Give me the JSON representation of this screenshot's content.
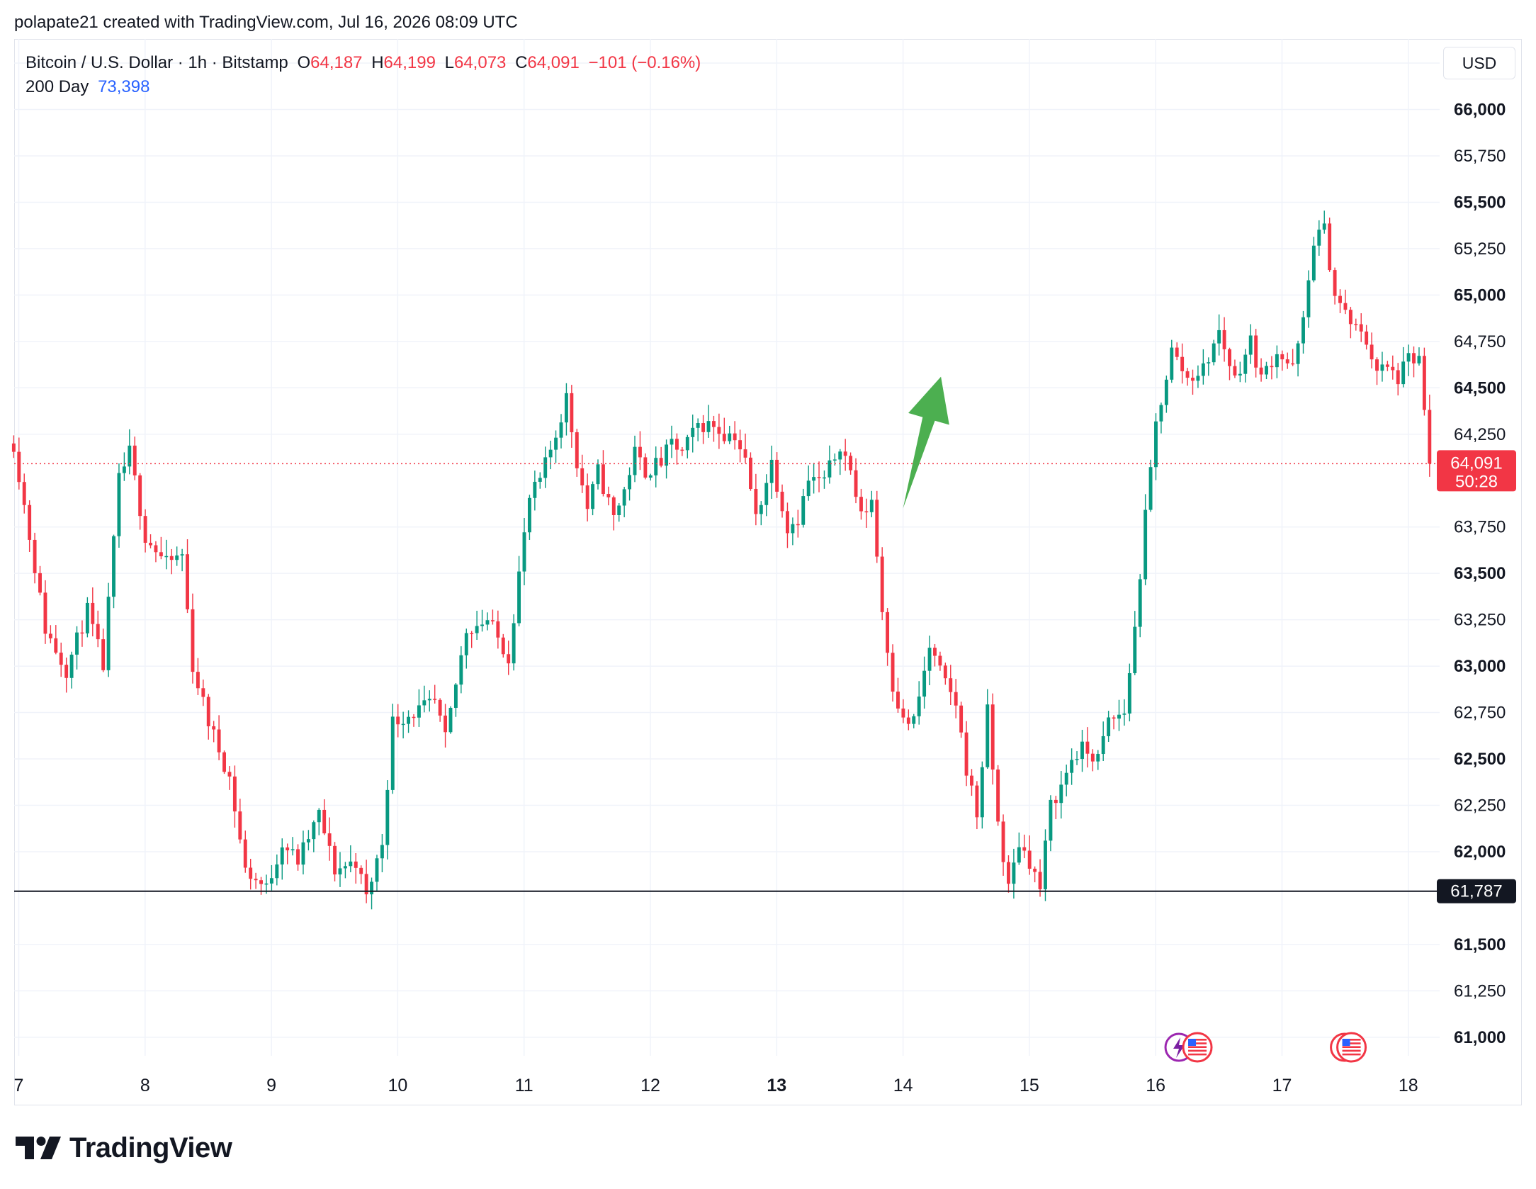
{
  "caption": "polapate21 created with TradingView.com, Jul 16, 2026 08:09 UTC",
  "legend": {
    "symbol": "Bitcoin / U.S. Dollar · 1h · Bitstamp",
    "o_label": "O",
    "o_value": "64,187",
    "h_label": "H",
    "h_value": "64,199",
    "l_label": "L",
    "l_value": "64,073",
    "c_label": "C",
    "c_value": "64,091",
    "change": "−101 (−0.16%)",
    "ma_label": "200 Day",
    "ma_value": "73,398"
  },
  "currency": "USD",
  "footer": {
    "brand": "TradingView"
  },
  "colors": {
    "up": "#089981",
    "down": "#f23645",
    "grid": "#f0f3fa",
    "ma": "#2962ff",
    "arrow": "#4caf50"
  },
  "chart_data": {
    "type": "candlestick",
    "title": "Bitcoin / U.S. Dollar · 1h · Bitstamp",
    "currency": "USD",
    "ylim": [
      60900,
      66380
    ],
    "y_ticks": [
      {
        "value": 61000,
        "label": "61,000",
        "bold": true
      },
      {
        "value": 61250,
        "label": "61,250",
        "bold": false
      },
      {
        "value": 61500,
        "label": "61,500",
        "bold": true
      },
      {
        "value": 62000,
        "label": "62,000",
        "bold": true
      },
      {
        "value": 62250,
        "label": "62,250",
        "bold": false
      },
      {
        "value": 62500,
        "label": "62,500",
        "bold": true
      },
      {
        "value": 62750,
        "label": "62,750",
        "bold": false
      },
      {
        "value": 63000,
        "label": "63,000",
        "bold": true
      },
      {
        "value": 63250,
        "label": "63,250",
        "bold": false
      },
      {
        "value": 63500,
        "label": "63,500",
        "bold": true
      },
      {
        "value": 63750,
        "label": "63,750",
        "bold": false
      },
      {
        "value": 64250,
        "label": "64,250",
        "bold": false
      },
      {
        "value": 64500,
        "label": "64,500",
        "bold": true
      },
      {
        "value": 64750,
        "label": "64,750",
        "bold": false
      },
      {
        "value": 65000,
        "label": "65,000",
        "bold": true
      },
      {
        "value": 65250,
        "label": "65,250",
        "bold": false
      },
      {
        "value": 65500,
        "label": "65,500",
        "bold": true
      },
      {
        "value": 65750,
        "label": "65,750",
        "bold": false
      },
      {
        "value": 66000,
        "label": "66,000",
        "bold": true
      },
      {
        "value": 66250,
        "label": "66,250",
        "bold": false
      }
    ],
    "x_range": [
      7.0,
      18.2
    ],
    "x_ticks": [
      {
        "value": 7,
        "label": "7",
        "bold": false
      },
      {
        "value": 8,
        "label": "8",
        "bold": false
      },
      {
        "value": 9,
        "label": "9",
        "bold": false
      },
      {
        "value": 10,
        "label": "10",
        "bold": false
      },
      {
        "value": 11,
        "label": "11",
        "bold": false
      },
      {
        "value": 12,
        "label": "12",
        "bold": false
      },
      {
        "value": 13,
        "label": "13",
        "bold": true
      },
      {
        "value": 14,
        "label": "14",
        "bold": false
      },
      {
        "value": 15,
        "label": "15",
        "bold": false
      },
      {
        "value": 16,
        "label": "16",
        "bold": false
      },
      {
        "value": 17,
        "label": "17",
        "bold": false
      },
      {
        "value": 18,
        "label": "18",
        "bold": false
      }
    ],
    "start_day": 6.96,
    "bar_hours": 1,
    "close_path": [
      [
        0,
        64200
      ],
      [
        6,
        63200
      ],
      [
        10,
        62980
      ],
      [
        14,
        63300
      ],
      [
        17,
        63000
      ],
      [
        20,
        64000
      ],
      [
        22,
        64150
      ],
      [
        25,
        63700
      ],
      [
        29,
        63550
      ],
      [
        32,
        63600
      ],
      [
        34,
        63000
      ],
      [
        37,
        62700
      ],
      [
        41,
        62400
      ],
      [
        44,
        61900
      ],
      [
        48,
        61800
      ],
      [
        51,
        62050
      ],
      [
        54,
        61950
      ],
      [
        58,
        62200
      ],
      [
        61,
        61900
      ],
      [
        65,
        61950
      ],
      [
        67,
        61750
      ],
      [
        70,
        62050
      ],
      [
        72,
        62700
      ],
      [
        76,
        62750
      ],
      [
        80,
        62800
      ],
      [
        82,
        62600
      ],
      [
        86,
        63200
      ],
      [
        90,
        63250
      ],
      [
        94,
        63050
      ],
      [
        96,
        63500
      ],
      [
        98,
        63900
      ],
      [
        100,
        64000
      ],
      [
        103,
        64250
      ],
      [
        105,
        64450
      ],
      [
        107,
        64100
      ],
      [
        109,
        63850
      ],
      [
        111,
        64050
      ],
      [
        114,
        63800
      ],
      [
        116,
        63950
      ],
      [
        118,
        64150
      ],
      [
        120,
        64050
      ],
      [
        123,
        64100
      ],
      [
        125,
        64200
      ],
      [
        127,
        64150
      ],
      [
        130,
        64300
      ],
      [
        133,
        64300
      ],
      [
        135,
        64250
      ],
      [
        137,
        64250
      ],
      [
        139,
        64100
      ],
      [
        141,
        63800
      ],
      [
        144,
        64100
      ],
      [
        147,
        63750
      ],
      [
        149,
        63800
      ],
      [
        151,
        64000
      ],
      [
        154,
        64000
      ],
      [
        157,
        64200
      ],
      [
        159,
        64050
      ],
      [
        161,
        63800
      ],
      [
        163,
        63900
      ],
      [
        165,
        63300
      ],
      [
        167,
        62900
      ],
      [
        169,
        62700
      ],
      [
        171,
        62700
      ],
      [
        174,
        63100
      ],
      [
        177,
        62900
      ],
      [
        179,
        62800
      ],
      [
        181,
        62450
      ],
      [
        183,
        62200
      ],
      [
        185,
        62750
      ],
      [
        187,
        62150
      ],
      [
        189,
        61800
      ],
      [
        191,
        62050
      ],
      [
        193,
        61950
      ],
      [
        195,
        61800
      ],
      [
        197,
        62250
      ],
      [
        199,
        62350
      ],
      [
        201,
        62500
      ],
      [
        203,
        62550
      ],
      [
        206,
        62500
      ],
      [
        208,
        62700
      ],
      [
        211,
        62750
      ],
      [
        213,
        63200
      ],
      [
        215,
        63800
      ],
      [
        217,
        64300
      ],
      [
        220,
        64700
      ],
      [
        223,
        64550
      ],
      [
        226,
        64600
      ],
      [
        229,
        64800
      ],
      [
        232,
        64550
      ],
      [
        235,
        64750
      ],
      [
        237,
        64550
      ],
      [
        240,
        64700
      ],
      [
        243,
        64600
      ],
      [
        245,
        64850
      ],
      [
        247,
        65300
      ],
      [
        249,
        65350
      ],
      [
        251,
        65000
      ],
      [
        254,
        64850
      ],
      [
        257,
        64750
      ],
      [
        259,
        64600
      ],
      [
        261,
        64600
      ],
      [
        263,
        64550
      ],
      [
        265,
        64650
      ],
      [
        267,
        64650
      ],
      [
        269,
        64100
      ]
    ],
    "seed": 11,
    "wick_volatility": 80,
    "last_price": {
      "value": 64091,
      "label": "64,091",
      "countdown": "50:28"
    },
    "horizontal_line": {
      "value": 61787,
      "label": "61,787"
    },
    "annotation": {
      "type": "arrow",
      "direction": "up",
      "from": [
        14.0,
        63850
      ],
      "to": [
        14.3,
        64560
      ]
    },
    "event_markers": [
      {
        "day": 16.33,
        "kind": "lightning-flag",
        "icon": "us-flag-icon"
      },
      {
        "day": 17.55,
        "kind": "flag",
        "icon": "us-flag-icon"
      }
    ]
  }
}
